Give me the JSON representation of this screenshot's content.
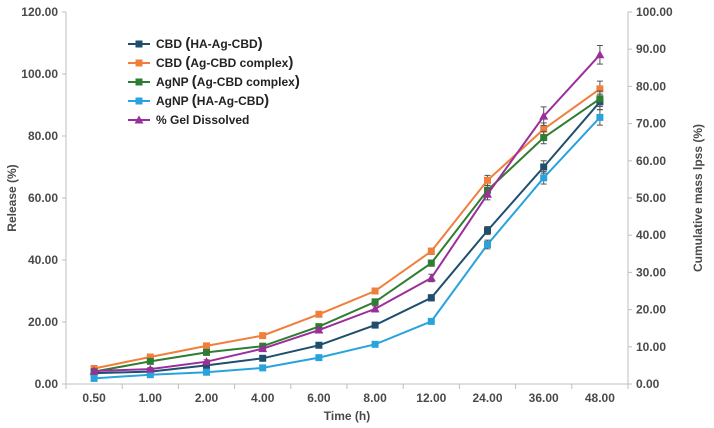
{
  "chart_data": {
    "type": "line",
    "categories": [
      "0.50",
      "1.00",
      "2.00",
      "4.00",
      "6.00",
      "8.00",
      "12.00",
      "24.00",
      "36.00",
      "48.00"
    ],
    "xlabel": "Time (h)",
    "ylabel": "Release (%)",
    "y2label": "Cumulative mass lpss (%)",
    "ylim": [
      0,
      120
    ],
    "y2lim": [
      0,
      100
    ],
    "yticks": [
      "0.00",
      "20.00",
      "40.00",
      "60.00",
      "80.00",
      "100.00",
      "120.00"
    ],
    "y2ticks": [
      "0.00",
      "10.00",
      "20.00",
      "30.00",
      "40.00",
      "50.00",
      "60.00",
      "70.00",
      "80.00",
      "90.00",
      "100.00"
    ],
    "grid": false,
    "legend_position": "top-left",
    "series": [
      {
        "name_main": "CBD",
        "name_paren": "HA-Ag-CBD",
        "color": "#1f4e6e",
        "marker": "square",
        "axis": "left",
        "values": [
          3.5,
          4.0,
          6.0,
          8.3,
          12.5,
          19.0,
          27.8,
          49.5,
          70.0,
          91.0
        ],
        "errors": [
          0.4,
          0.4,
          0.5,
          0.6,
          0.7,
          0.8,
          1.0,
          1.3,
          2.0,
          2.5
        ]
      },
      {
        "name_main": "CBD",
        "name_paren": "Ag-CBD complex",
        "color": "#f07f3c",
        "marker": "square",
        "axis": "left",
        "values": [
          5.0,
          8.7,
          12.3,
          15.6,
          22.5,
          30.0,
          42.8,
          65.7,
          82.2,
          95.2
        ],
        "errors": [
          0.4,
          0.5,
          0.6,
          0.7,
          0.8,
          0.9,
          1.0,
          1.6,
          2.0,
          2.5
        ]
      },
      {
        "name_main": "AgNP",
        "name_paren": "Ag-CBD complex",
        "color": "#2e7d32",
        "marker": "square",
        "axis": "left",
        "values": [
          4.0,
          7.3,
          10.2,
          12.2,
          18.5,
          26.5,
          39.0,
          62.5,
          79.5,
          92.0
        ],
        "errors": [
          0.4,
          0.5,
          0.6,
          0.7,
          0.8,
          0.9,
          1.0,
          1.5,
          2.0,
          2.5
        ]
      },
      {
        "name_main": "AgNP",
        "name_paren": "HA-Ag-CBD",
        "color": "#29a3dd",
        "marker": "square",
        "axis": "left",
        "values": [
          1.8,
          3.0,
          3.8,
          5.2,
          8.5,
          12.8,
          20.2,
          45.0,
          66.5,
          86.0
        ],
        "errors": [
          0.3,
          0.4,
          0.4,
          0.5,
          0.6,
          0.7,
          0.8,
          1.4,
          2.0,
          2.5
        ]
      },
      {
        "name_main": "% Gel Dissolved",
        "name_paren": "",
        "color": "#9b2e9b",
        "marker": "triangle",
        "axis": "right",
        "values": [
          3.5,
          4.0,
          6.0,
          9.5,
          14.5,
          20.2,
          28.5,
          51.0,
          72.0,
          88.5
        ],
        "errors": [
          0.4,
          0.4,
          0.5,
          0.6,
          0.7,
          0.8,
          1.0,
          1.5,
          2.5,
          2.5
        ]
      }
    ]
  }
}
